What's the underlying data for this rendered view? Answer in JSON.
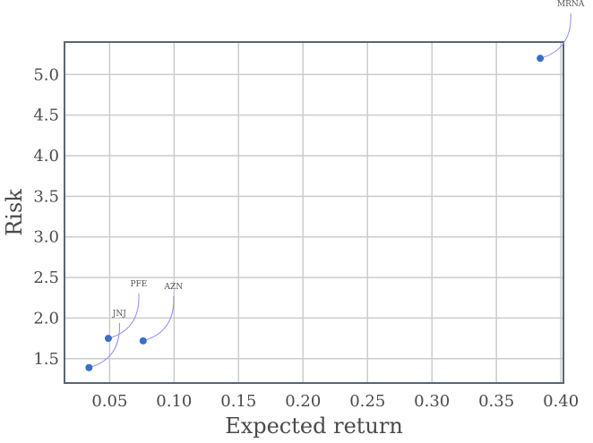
{
  "chart_data": {
    "type": "scatter",
    "xlabel": "Expected return",
    "ylabel": "Risk",
    "xlim": [
      0.015,
      0.402
    ],
    "ylim": [
      1.2,
      5.4
    ],
    "grid": true,
    "xticks": [
      0.05,
      0.1,
      0.15,
      0.2,
      0.25,
      0.3,
      0.35,
      0.4
    ],
    "xtick_labels": [
      "0.05",
      "0.10",
      "0.15",
      "0.20",
      "0.25",
      "0.30",
      "0.35",
      "0.40"
    ],
    "yticks": [
      1.5,
      2.0,
      2.5,
      3.0,
      3.5,
      4.0,
      4.5,
      5.0
    ],
    "ytick_labels": [
      "1.5",
      "2.0",
      "2.5",
      "3.0",
      "3.5",
      "4.0",
      "4.5",
      "5.0"
    ],
    "points": [
      {
        "label": "MRNA",
        "x": 0.384,
        "y": 5.2
      },
      {
        "label": "AZN",
        "x": 0.076,
        "y": 1.72
      },
      {
        "label": "PFE",
        "x": 0.049,
        "y": 1.75
      },
      {
        "label": "JNJ",
        "x": 0.034,
        "y": 1.39
      }
    ],
    "colors": {
      "point": "#3a6fc4",
      "connector": "#8a8aff",
      "grid": "#cccccc",
      "spine": "#5a6670"
    }
  }
}
